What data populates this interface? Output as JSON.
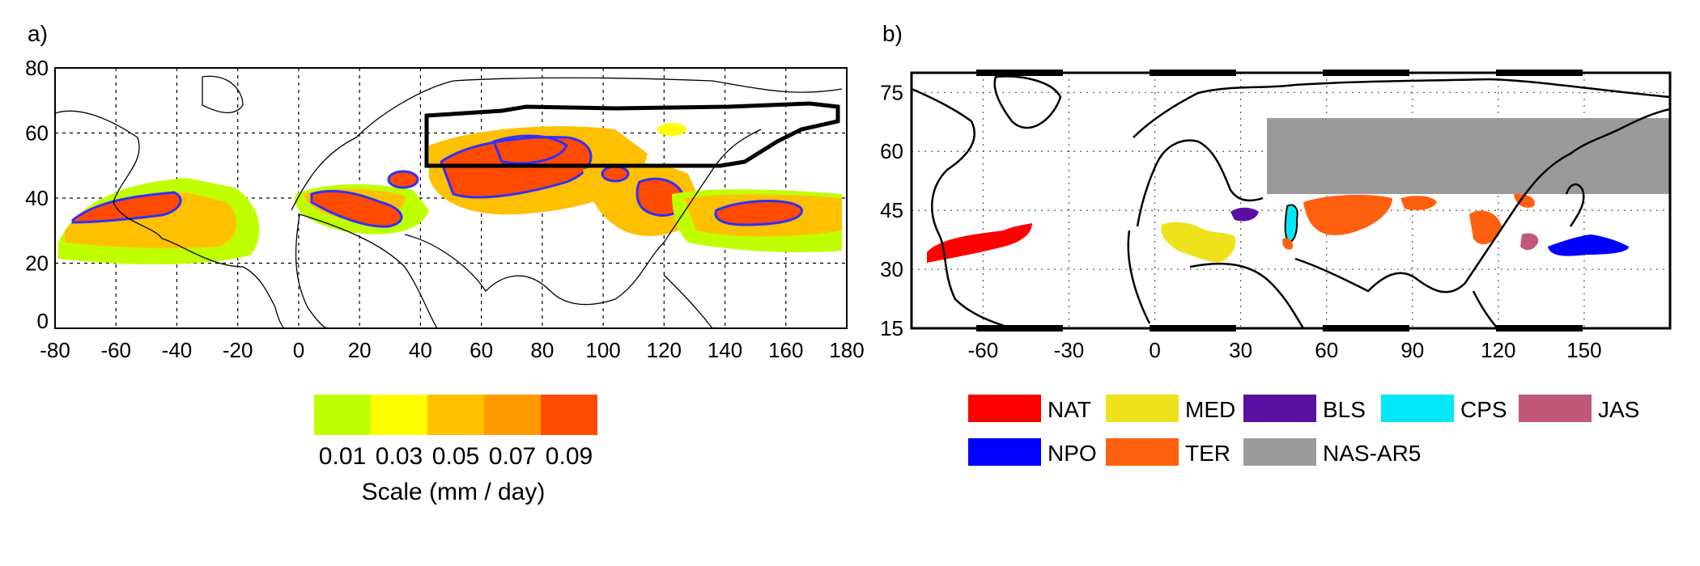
{
  "panel_a": {
    "label": "a)",
    "x_ticks": [
      "-80",
      "-60",
      "-40",
      "-20",
      "0",
      "20",
      "40",
      "60",
      "80",
      "100",
      "120",
      "140",
      "160",
      "180"
    ],
    "y_ticks": [
      "80",
      "60",
      "40",
      "20",
      "0"
    ],
    "scale_values": [
      "0.01",
      "0.03",
      "0.05",
      "0.07",
      "0.09"
    ],
    "scale_colors": [
      "#bfff00",
      "#ffff00",
      "#ffc000",
      "#ff9a00",
      "#ff4a00"
    ],
    "scale_title": "Scale (mm / day)"
  },
  "panel_b": {
    "label": "b)",
    "x_ticks": [
      "-60",
      "-30",
      "0",
      "30",
      "60",
      "90",
      "120",
      "150"
    ],
    "y_ticks": [
      "75",
      "60",
      "45",
      "30",
      "15"
    ],
    "legend": [
      {
        "name": "NAT",
        "color": "#ff0000"
      },
      {
        "name": "MED",
        "color": "#eee21c"
      },
      {
        "name": "BLS",
        "color": "#5a0fa0"
      },
      {
        "name": "CPS",
        "color": "#00e8f8"
      },
      {
        "name": "JAS",
        "color": "#c05878"
      },
      {
        "name": "NPO",
        "color": "#0000ff"
      },
      {
        "name": "TER",
        "color": "#ff6010"
      },
      {
        "name": "NAS-AR5",
        "color": "#9a9a9a"
      }
    ]
  },
  "chart_data": [
    {
      "type": "heatmap",
      "title": "",
      "xlabel": "",
      "ylabel": "",
      "xlim": [
        -80,
        180
      ],
      "ylim": [
        0,
        80
      ],
      "colorbar": {
        "bins": [
          0.01,
          0.03,
          0.05,
          0.07,
          0.09
        ],
        "units": "mm / day"
      },
      "grid": true
    },
    {
      "type": "heatmap",
      "title": "",
      "xlabel": "",
      "ylabel": "",
      "xlim": [
        -85,
        180
      ],
      "ylim": [
        15,
        80
      ],
      "categories": [
        "NAT",
        "MED",
        "BLS",
        "CPS",
        "JAS",
        "NPO",
        "TER",
        "NAS-AR5"
      ],
      "grid": true
    }
  ]
}
